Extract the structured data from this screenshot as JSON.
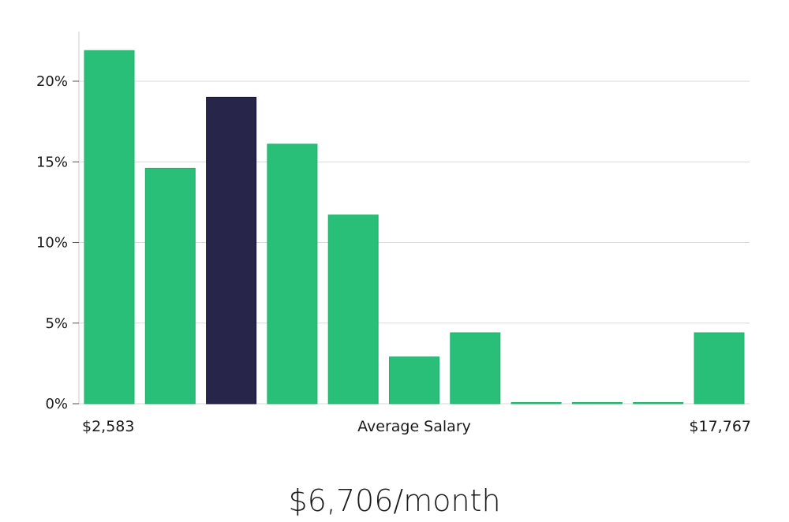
{
  "chart_data": {
    "type": "bar",
    "categories": [
      "1",
      "2",
      "3",
      "4",
      "5",
      "6",
      "7",
      "8",
      "9",
      "10",
      "11"
    ],
    "values": [
      21.9,
      14.6,
      19.0,
      16.1,
      11.7,
      2.9,
      4.4,
      0.0,
      0.0,
      0.0,
      4.4
    ],
    "highlight_index": 2,
    "colors": {
      "bar": "#2abf78",
      "highlight": "#28254a",
      "grid": "#d9d9d9",
      "axis": "#cccccc"
    },
    "ylim": [
      0,
      23
    ],
    "yticks": [
      0,
      5,
      10,
      15,
      20
    ],
    "ytick_format": "%",
    "xlabel": "Average Salary",
    "x_min_label": "$2,583",
    "x_max_label": "$17,767",
    "grid": true
  },
  "summary": {
    "value": "$6,706/month"
  }
}
